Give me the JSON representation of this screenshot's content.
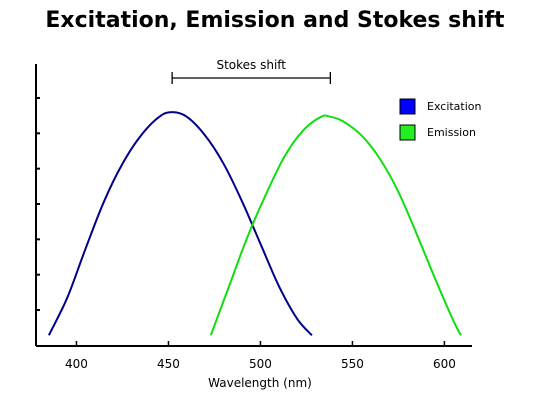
{
  "chart_data": {
    "type": "line",
    "title": "Excitation, Emission and Stokes shift",
    "xlabel": "Wavelength (nm)",
    "ylabel": "",
    "xlim": [
      378,
      615
    ],
    "ylim": [
      0,
      1
    ],
    "x_ticks": [
      400,
      450,
      500,
      550,
      600
    ],
    "y_tick_count": 7,
    "grid": false,
    "legend_position": "top-right",
    "series": [
      {
        "name": "Excitation",
        "color": "#000088",
        "legend_color": "#0000ff",
        "x": [
          385,
          395,
          405,
          415,
          425,
          435,
          445,
          452,
          460,
          470,
          480,
          490,
          500,
          510,
          520,
          528
        ],
        "y": [
          0.02,
          0.18,
          0.39,
          0.59,
          0.75,
          0.87,
          0.95,
          0.97,
          0.95,
          0.87,
          0.75,
          0.59,
          0.41,
          0.23,
          0.09,
          0.02
        ]
      },
      {
        "name": "Emission",
        "color": "#11dd11",
        "legend_color": "#22ee22",
        "x": [
          473,
          483,
          493,
          503,
          513,
          523,
          533,
          538,
          545,
          555,
          565,
          575,
          585,
          595,
          605,
          609
        ],
        "y": [
          0.02,
          0.23,
          0.44,
          0.62,
          0.78,
          0.89,
          0.95,
          0.95,
          0.93,
          0.87,
          0.77,
          0.63,
          0.45,
          0.26,
          0.08,
          0.02
        ]
      }
    ],
    "annotations": [
      {
        "type": "bracket",
        "label": "Stokes shift",
        "x_start": 452,
        "x_end": 538
      }
    ]
  }
}
